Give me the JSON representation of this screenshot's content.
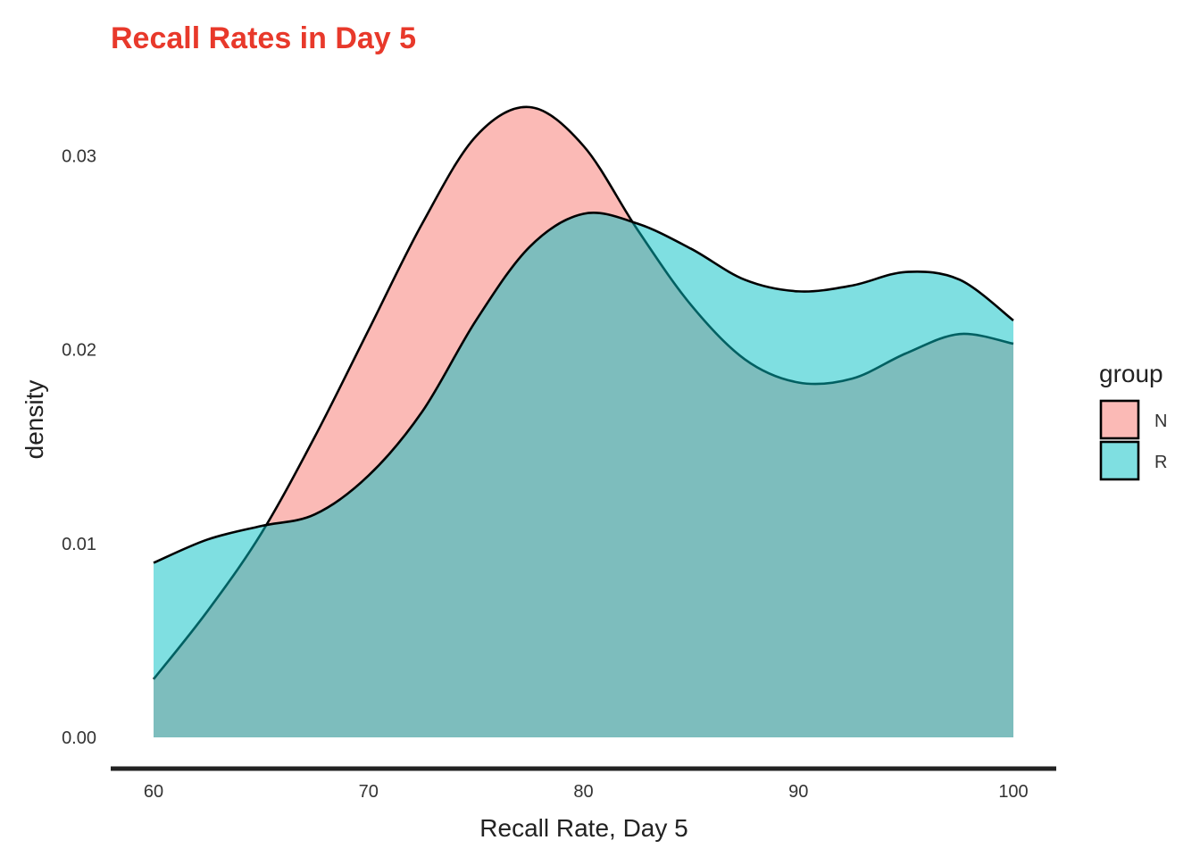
{
  "chart_data": {
    "type": "area",
    "title": "Recall Rates in Day 5",
    "title_color": "#E8392B",
    "xlabel": "Recall Rate, Day 5",
    "ylabel": "density",
    "xlim": [
      60,
      100
    ],
    "ylim": [
      0,
      0.0325
    ],
    "x_ticks": [
      "60",
      "70",
      "80",
      "90",
      "100"
    ],
    "y_ticks": [
      "0.00",
      "0.01",
      "0.02",
      "0.03"
    ],
    "grid": false,
    "legend": {
      "title": "group",
      "placement": "right"
    },
    "series": [
      {
        "name": "N",
        "color": "#F8766D",
        "x": [
          60,
          62.5,
          65,
          67.5,
          70,
          72.5,
          75,
          77.5,
          80,
          82.5,
          85,
          87.5,
          90,
          92.5,
          95,
          97.5,
          100
        ],
        "values": [
          0.003,
          0.0065,
          0.0105,
          0.0155,
          0.021,
          0.0265,
          0.031,
          0.0325,
          0.0305,
          0.0262,
          0.0223,
          0.0195,
          0.0183,
          0.0185,
          0.0198,
          0.0208,
          0.0203
        ]
      },
      {
        "name": "R",
        "color": "#00BFC4",
        "x": [
          60,
          62.5,
          65,
          67.5,
          70,
          72.5,
          75,
          77.5,
          80,
          82.5,
          85,
          87.5,
          90,
          92.5,
          95,
          97.5,
          100
        ],
        "values": [
          0.009,
          0.0102,
          0.0109,
          0.0115,
          0.0135,
          0.0168,
          0.0215,
          0.0253,
          0.027,
          0.0265,
          0.0252,
          0.0236,
          0.023,
          0.0233,
          0.024,
          0.0236,
          0.0215
        ]
      }
    ]
  }
}
